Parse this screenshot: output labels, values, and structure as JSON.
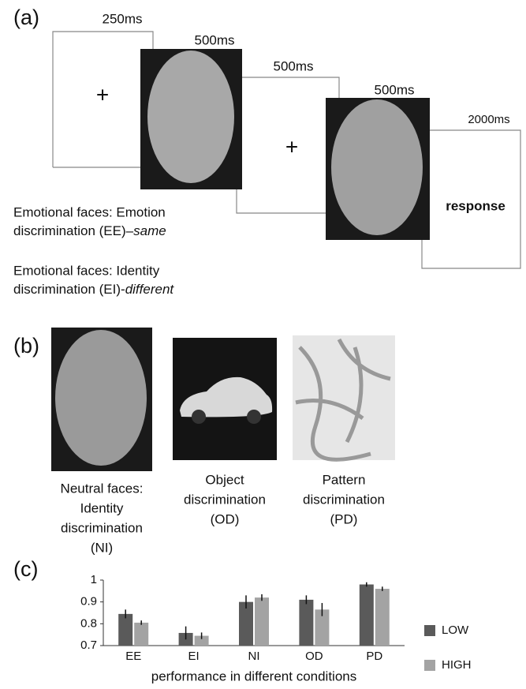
{
  "panel_a": {
    "label": "(a)",
    "timings": [
      "250ms",
      "500ms",
      "500ms",
      "500ms",
      "2000ms"
    ],
    "fixation": "+",
    "response": "response",
    "caption_1": {
      "lines": [
        "Emotional faces: Emotion",
        "discrimination (EE)–"
      ],
      "emphasis": "same"
    },
    "caption_2": {
      "lines": [
        "Emotional faces: Identity",
        "discrimination (EI)-"
      ],
      "emphasis": "different"
    }
  },
  "panel_b": {
    "label": "(b)",
    "captions": [
      [
        "Neutral faces:",
        "Identity",
        "discrimination",
        "(NI)"
      ],
      [
        "Object",
        "discrimination",
        "(OD)"
      ],
      [
        "Pattern",
        "discrimination",
        "(PD)"
      ]
    ]
  },
  "chart_data": {
    "type": "bar",
    "label": "(c)",
    "x_label": "performance in different conditions",
    "categories": [
      "EE",
      "EI",
      "NI",
      "OD",
      "PD"
    ],
    "series": [
      {
        "name": "LOW",
        "color": "#5a5a5a",
        "values": [
          0.845,
          0.758,
          0.9,
          0.91,
          0.98
        ],
        "errors": [
          0.02,
          0.03,
          0.03,
          0.02,
          0.01
        ]
      },
      {
        "name": "HIGH",
        "color": "#a3a3a3",
        "values": [
          0.805,
          0.745,
          0.92,
          0.865,
          0.96
        ],
        "errors": [
          0.01,
          0.015,
          0.015,
          0.03,
          0.01
        ]
      }
    ],
    "ylim": [
      0.7,
      1
    ],
    "yticks": [
      0.7,
      0.8,
      0.9,
      1
    ],
    "legend": "right"
  }
}
